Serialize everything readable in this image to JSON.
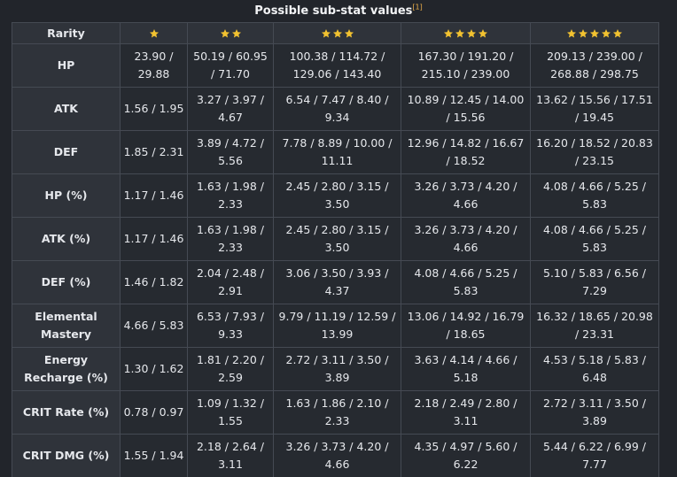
{
  "caption": {
    "title": "Possible sub-stat values",
    "ref": "[1]"
  },
  "colors": {
    "star": "#f2c230",
    "ref": "#f1b24a"
  },
  "header": {
    "rarity_label": "Rarity",
    "star_counts": [
      1,
      2,
      3,
      4,
      5
    ]
  },
  "rows": [
    {
      "stat": "HP",
      "values": [
        "23.90 / 29.88",
        "50.19 / 60.95 / 71.70",
        "100.38 / 114.72 / 129.06 / 143.40",
        "167.30 / 191.20 / 215.10 / 239.00",
        "209.13 / 239.00 / 268.88 / 298.75"
      ]
    },
    {
      "stat": "ATK",
      "values": [
        "1.56 / 1.95",
        "3.27 / 3.97 / 4.67",
        "6.54 / 7.47 / 8.40 / 9.34",
        "10.89 / 12.45 / 14.00 / 15.56",
        "13.62 / 15.56 / 17.51 / 19.45"
      ]
    },
    {
      "stat": "DEF",
      "values": [
        "1.85 / 2.31",
        "3.89 / 4.72 / 5.56",
        "7.78 / 8.89 / 10.00 / 11.11",
        "12.96 / 14.82 / 16.67 / 18.52",
        "16.20 / 18.52 / 20.83 / 23.15"
      ]
    },
    {
      "stat": "HP (%)",
      "values": [
        "1.17 / 1.46",
        "1.63 / 1.98 / 2.33",
        "2.45 / 2.80 / 3.15 / 3.50",
        "3.26 / 3.73 / 4.20 / 4.66",
        "4.08 / 4.66 / 5.25 / 5.83"
      ]
    },
    {
      "stat": "ATK (%)",
      "values": [
        "1.17 / 1.46",
        "1.63 / 1.98 / 2.33",
        "2.45 / 2.80 / 3.15 / 3.50",
        "3.26 / 3.73 / 4.20 / 4.66",
        "4.08 / 4.66 / 5.25 / 5.83"
      ]
    },
    {
      "stat": "DEF (%)",
      "values": [
        "1.46 / 1.82",
        "2.04 / 2.48 / 2.91",
        "3.06 / 3.50 / 3.93 / 4.37",
        "4.08 / 4.66 / 5.25 / 5.83",
        "5.10 / 5.83 / 6.56 / 7.29"
      ]
    },
    {
      "stat": "Elemental Mastery",
      "values": [
        "4.66 / 5.83",
        "6.53 / 7.93 / 9.33",
        "9.79 / 11.19 / 12.59 / 13.99",
        "13.06 / 14.92 / 16.79 / 18.65",
        "16.32 / 18.65 / 20.98 / 23.31"
      ]
    },
    {
      "stat": "Energy Recharge (%)",
      "values": [
        "1.30 / 1.62",
        "1.81 / 2.20 / 2.59",
        "2.72 / 3.11 / 3.50 / 3.89",
        "3.63 / 4.14 / 4.66 / 5.18",
        "4.53 / 5.18 / 5.83 / 6.48"
      ]
    },
    {
      "stat": "CRIT Rate (%)",
      "values": [
        "0.78 / 0.97",
        "1.09 / 1.32 / 1.55",
        "1.63 / 1.86 / 2.10 / 2.33",
        "2.18 / 2.49 / 2.80 / 3.11",
        "2.72 / 3.11 / 3.50 / 3.89"
      ]
    },
    {
      "stat": "CRIT DMG (%)",
      "values": [
        "1.55 / 1.94",
        "2.18 / 2.64 / 3.11",
        "3.26 / 3.73 / 4.20 / 4.66",
        "4.35 / 4.97 / 5.60 / 6.22",
        "5.44 / 6.22 / 6.99 / 7.77"
      ]
    }
  ]
}
